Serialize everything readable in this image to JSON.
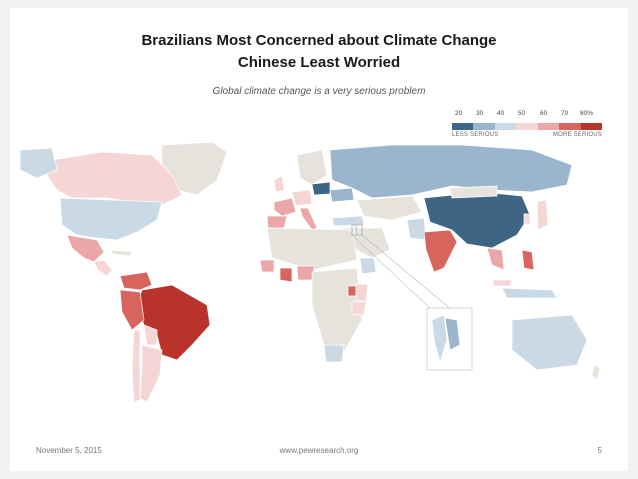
{
  "slide": {
    "title_line1": "Brazilians Most Concerned about Climate Change",
    "title_line2": "Chinese Least Worried",
    "subtitle": "Global climate change is a very serious problem"
  },
  "legend": {
    "ticks": [
      "20",
      "30",
      "40",
      "50",
      "60",
      "70",
      "80%"
    ],
    "less_label": "LESS SERIOUS",
    "more_label": "MORE SERIOUS",
    "colors": [
      "#3f6584",
      "#9bb6cc",
      "#c9d9e6",
      "#f6d5d5",
      "#eba7a7",
      "#d8655d",
      "#b8342b"
    ]
  },
  "map_colors": {
    "no_data": "#e5e3dc",
    "ocean": "#ffffff"
  },
  "footer": {
    "date": "November 5, 2015",
    "website": "www.pewresearch.org",
    "page_number": "5"
  }
}
